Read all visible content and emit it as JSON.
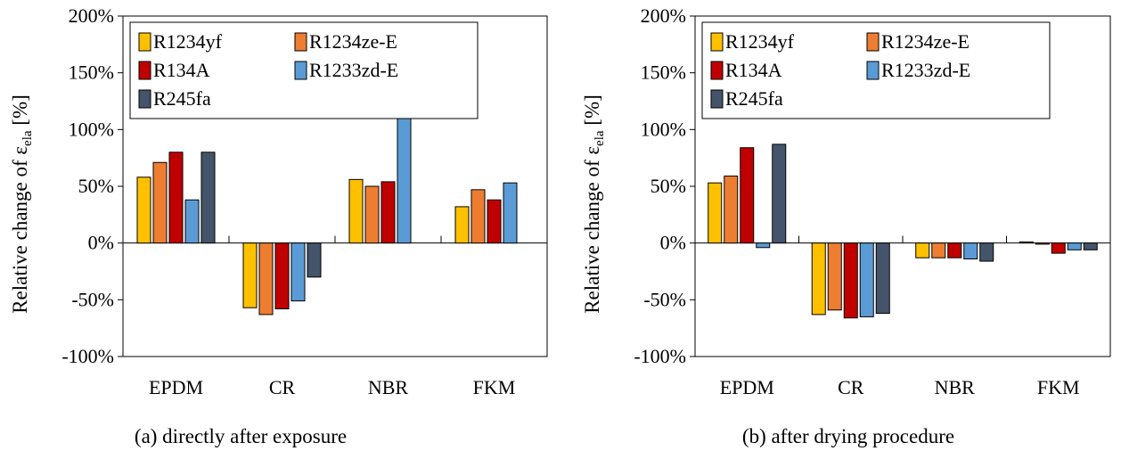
{
  "colors": {
    "R1234yf": "#ffc000",
    "R1234ze-E": "#ed7d31",
    "R134A": "#c00000",
    "R1233zd-E": "#5b9bd5",
    "R245fa": "#44546a"
  },
  "y_label_main": "Relative change of ε",
  "y_label_sub": "ela",
  "y_label_unit": " [%]",
  "chart_data": [
    {
      "type": "bar",
      "caption": "(a) directly after exposure",
      "categories": [
        "EPDM",
        "CR",
        "NBR",
        "FKM"
      ],
      "ylim": [
        -100,
        200
      ],
      "yticks": [
        -100,
        -50,
        0,
        50,
        100,
        150,
        200
      ],
      "ytick_labels": [
        "-100%",
        "-50%",
        "0%",
        "50%",
        "100%",
        "150%",
        "200%"
      ],
      "grid": false,
      "legend_position": "top-left",
      "series": [
        {
          "name": "R1234yf",
          "values": [
            58,
            -57,
            56,
            32
          ]
        },
        {
          "name": "R1234ze-E",
          "values": [
            71,
            -63,
            50,
            47
          ]
        },
        {
          "name": "R134A",
          "values": [
            80,
            -58,
            54,
            38
          ]
        },
        {
          "name": "R1233zd-E",
          "values": [
            38,
            -51,
            112,
            53
          ]
        },
        {
          "name": "R245fa",
          "values": [
            80,
            -30,
            null,
            null
          ]
        }
      ]
    },
    {
      "type": "bar",
      "caption": "(b) after drying procedure",
      "categories": [
        "EPDM",
        "CR",
        "NBR",
        "FKM"
      ],
      "ylim": [
        -100,
        200
      ],
      "yticks": [
        -100,
        -50,
        0,
        50,
        100,
        150,
        200
      ],
      "ytick_labels": [
        "-100%",
        "-50%",
        "0%",
        "50%",
        "100%",
        "150%",
        "200%"
      ],
      "grid": false,
      "legend_position": "top-left",
      "series": [
        {
          "name": "R1234yf",
          "values": [
            53,
            -63,
            -13,
            1
          ]
        },
        {
          "name": "R1234ze-E",
          "values": [
            59,
            -59,
            -13,
            -1
          ]
        },
        {
          "name": "R134A",
          "values": [
            84,
            -66,
            -13,
            -9
          ]
        },
        {
          "name": "R1233zd-E",
          "values": [
            -4,
            -65,
            -14,
            -6
          ]
        },
        {
          "name": "R245fa",
          "values": [
            87,
            -62,
            -16,
            -6
          ]
        }
      ]
    }
  ]
}
